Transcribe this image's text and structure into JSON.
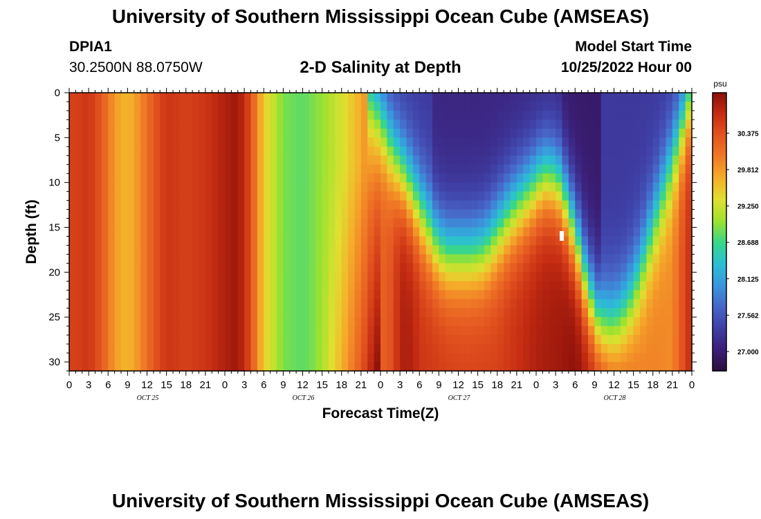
{
  "header": {
    "title": "University of Southern Mississippi Ocean Cube (AMSEAS)",
    "station_id": "DPIA1",
    "station_coords": "30.2500N  88.0750W",
    "plot_title": "2-D Salinity at Depth",
    "model_start_label": "Model Start Time",
    "model_start_time": "10/25/2022 Hour 00"
  },
  "footer": {
    "title": "University of Southern Mississippi Ocean Cube (AMSEAS)"
  },
  "colors": {
    "palette": [
      "#2c0f3c",
      "#3b1f78",
      "#3f3fa5",
      "#4866c8",
      "#3a97dd",
      "#2cbfd4",
      "#38d788",
      "#9de22f",
      "#e0e030",
      "#f5ae2a",
      "#f07a26",
      "#e35420",
      "#c62d12",
      "#8a0f0a"
    ]
  },
  "chart_data": {
    "type": "heatmap",
    "xlabel": "Forecast Time(Z)",
    "ylabel": "Depth (ft)",
    "x_range_hours": [
      0,
      96
    ],
    "ylim": [
      0,
      31
    ],
    "x_tick_hours": [
      0,
      3,
      6,
      9,
      12,
      15,
      18,
      21,
      24,
      27,
      30,
      33,
      36,
      39,
      42,
      45,
      48,
      51,
      54,
      57,
      60,
      63,
      66,
      69,
      72,
      75,
      78,
      81,
      84,
      87,
      90,
      93,
      96
    ],
    "x_tick_labels": [
      "0",
      "3",
      "6",
      "9",
      "12",
      "15",
      "18",
      "21",
      "0",
      "3",
      "6",
      "9",
      "12",
      "15",
      "18",
      "21",
      "0",
      "3",
      "6",
      "9",
      "12",
      "15",
      "18",
      "21",
      "0",
      "3",
      "6",
      "9",
      "12",
      "15",
      "18",
      "21",
      "0"
    ],
    "date_labels": [
      {
        "hour": 12,
        "label": "OCT 25"
      },
      {
        "hour": 36,
        "label": "OCT 26"
      },
      {
        "hour": 60,
        "label": "OCT 27"
      },
      {
        "hour": 84,
        "label": "OCT 28"
      }
    ],
    "y_ticks": [
      0,
      5,
      10,
      15,
      20,
      25,
      30
    ],
    "y_tick_labels": [
      "0",
      "5",
      "10",
      "15",
      "20",
      "25",
      "30"
    ],
    "colorbar": {
      "unit": "psu",
      "min": 26.7,
      "max": 31.0,
      "labels": [
        {
          "value": 30.375,
          "text": "30.375"
        },
        {
          "value": 29.812,
          "text": "29.812"
        },
        {
          "value": 29.25,
          "text": "29.250"
        },
        {
          "value": 28.688,
          "text": "28.688"
        },
        {
          "value": 28.125,
          "text": "28.125"
        },
        {
          "value": 27.562,
          "text": "27.562"
        },
        {
          "value": 27.0,
          "text": "27.000"
        }
      ]
    },
    "field_description": {
      "column_profile_hours": [
        0,
        1,
        3,
        5,
        7,
        9,
        11,
        13,
        15,
        18,
        21,
        24,
        26,
        28,
        29,
        30,
        31,
        33,
        36,
        39,
        42,
        45,
        47,
        50,
        51,
        53,
        54,
        60,
        66,
        72,
        76,
        78,
        82,
        84,
        88,
        93,
        95,
        96
      ],
      "column_profile_salinity": [
        30.5,
        30.5,
        30.6,
        30.3,
        29.8,
        29.6,
        29.9,
        30.3,
        30.6,
        30.5,
        30.6,
        30.8,
        30.9,
        30.4,
        29.9,
        29.5,
        29.3,
        28.9,
        28.8,
        29.0,
        29.3,
        29.7,
        30.1,
        30.4,
        30.8,
        30.8,
        30.6,
        30.5,
        30.5,
        30.8,
        30.9,
        31.0,
        30.7,
        30.4,
        30.0,
        29.9,
        30.5,
        30.7
      ],
      "fresh_layer_start_hour": 46,
      "fresh_layer_salinity": 27.3,
      "fresh_layer_depth_by_hour": {
        "hours": [
          46,
          48,
          50,
          52,
          54,
          56,
          58,
          60,
          62,
          64,
          66,
          68,
          70,
          72,
          73,
          74,
          75,
          76,
          78,
          80,
          82,
          84,
          86,
          88,
          90,
          92,
          94,
          96
        ],
        "depths": [
          0,
          3,
          7,
          10,
          13,
          16,
          18,
          18,
          18,
          17.5,
          15.5,
          13.5,
          12,
          10.5,
          9.5,
          9.5,
          10,
          11,
          16,
          22,
          26,
          26,
          24,
          20,
          15,
          10,
          5,
          0
        ]
      }
    }
  }
}
